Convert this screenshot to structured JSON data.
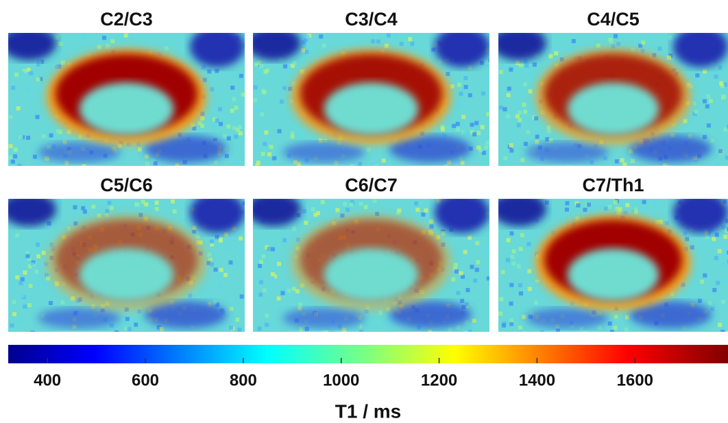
{
  "panels": [
    {
      "title": "C2/C3"
    },
    {
      "title": "C3/C4"
    },
    {
      "title": "C4/C5"
    },
    {
      "title": "C5/C6"
    },
    {
      "title": "C6/C7"
    },
    {
      "title": "C7/Th1"
    }
  ],
  "colorbar": {
    "label": "T1 / ms",
    "colormap": "jet",
    "lim": [
      320,
      1790
    ],
    "ticks": [
      400,
      600,
      800,
      1000,
      1200,
      1400,
      1600
    ]
  }
}
